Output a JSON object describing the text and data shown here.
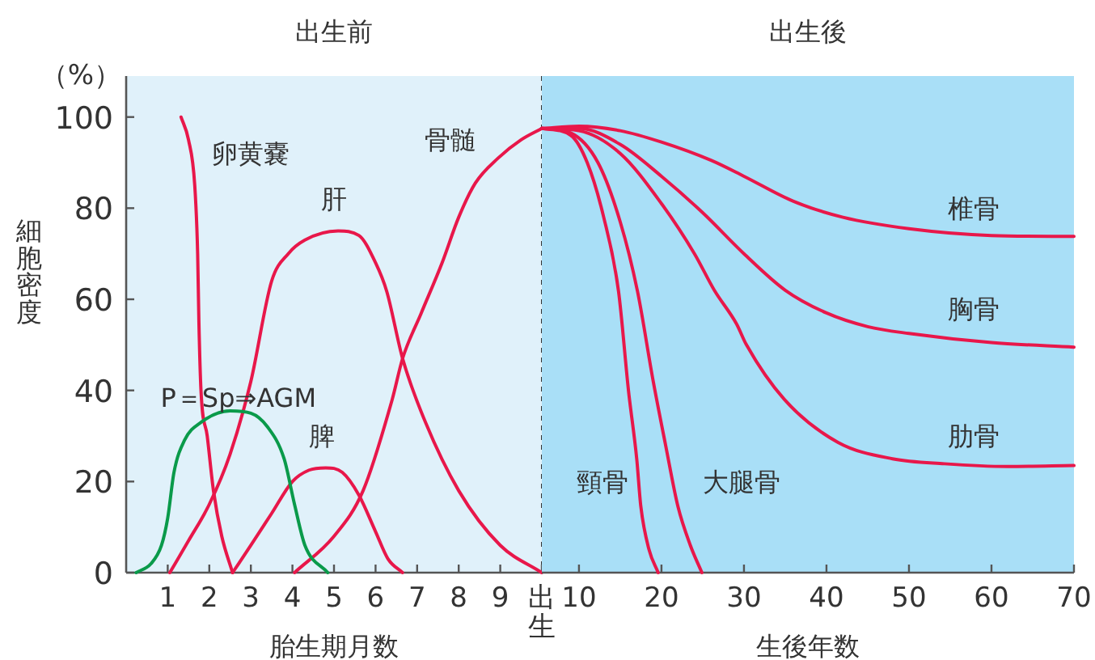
{
  "chart_data": [
    {
      "type": "line",
      "title": "出生前",
      "xlabel": "胎生期月数",
      "ylabel": "細胞密度",
      "annotations": [
        "（%）"
      ],
      "xlim": [
        0,
        10
      ],
      "xticks": [
        1,
        2,
        3,
        4,
        5,
        6,
        7,
        8,
        9,
        {
          "value": 10,
          "label": "出生"
        }
      ],
      "ylim": [
        0,
        109
      ],
      "yticks": [
        0,
        20,
        40,
        60,
        80,
        100
      ],
      "grid": false,
      "marker": "none",
      "line_style": "solid",
      "series": [
        {
          "name": "卵黄嚢",
          "color": "#e8174a",
          "x": [
            1.32,
            1.5,
            1.65,
            1.72,
            1.75,
            1.8,
            1.95,
            2.1,
            2.3,
            2.56
          ],
          "values": [
            100,
            95,
            85,
            70,
            55,
            40,
            30,
            18,
            8,
            0
          ]
        },
        {
          "name": "肝",
          "color": "#e8174a",
          "x": [
            1.05,
            1.5,
            2.0,
            2.5,
            3.0,
            3.5,
            3.9,
            4.3,
            5.1,
            5.6,
            6.0,
            6.27,
            6.65,
            7.2,
            8.0,
            9.0,
            10.0
          ],
          "values": [
            0,
            7,
            15,
            26,
            42,
            64,
            70,
            73,
            75,
            74,
            68,
            61.7,
            47,
            33,
            18,
            6,
            0
          ]
        },
        {
          "name": "骨髄",
          "color": "#e8174a",
          "x": [
            4.05,
            5.0,
            5.7,
            6.4,
            6.65,
            7.1,
            7.6,
            8.0,
            8.4,
            8.95,
            9.5,
            10.0
          ],
          "values": [
            0,
            8,
            18,
            38,
            47,
            57,
            68,
            78,
            85.5,
            91,
            95,
            97.5
          ]
        },
        {
          "name": "脾",
          "color": "#e8174a",
          "x": [
            2.56,
            3.0,
            3.5,
            4.0,
            4.4,
            4.8,
            5.2,
            5.6,
            6.0,
            6.3,
            6.65
          ],
          "values": [
            0,
            6,
            13,
            20,
            22.5,
            23,
            22,
            17,
            9,
            3,
            0
          ]
        },
        {
          "name": "P＝Sp⇒AGM",
          "color": "#0a9a4a",
          "x": [
            0.24,
            0.6,
            0.85,
            1.0,
            1.15,
            1.4,
            1.8,
            2.5,
            3.0,
            3.4,
            3.8,
            4.05,
            4.3,
            4.85
          ],
          "values": [
            0,
            2,
            6,
            12,
            22,
            29,
            33,
            35.5,
            35,
            32,
            25,
            15,
            6,
            0
          ]
        }
      ]
    },
    {
      "type": "line",
      "title": "出生後",
      "xlabel": "生後年数",
      "xlim": [
        5.5,
        70
      ],
      "xticks": [
        10,
        20,
        30,
        40,
        50,
        60,
        70
      ],
      "ylim": [
        0,
        109
      ],
      "tick_labels": "x",
      "grid": false,
      "marker": "none",
      "line_style": "solid",
      "series": [
        {
          "name": "椎骨",
          "color": "#e8174a",
          "x": [
            5.5,
            10,
            15,
            20,
            26,
            30,
            36,
            42,
            50,
            60,
            70
          ],
          "values": [
            97.5,
            98,
            97,
            94.5,
            90.5,
            87,
            81.5,
            78,
            75.5,
            74,
            73.8
          ]
        },
        {
          "name": "胸骨",
          "color": "#e8174a",
          "x": [
            5.5,
            10,
            15,
            20,
            25,
            30,
            35,
            40,
            45,
            50,
            60,
            70
          ],
          "values": [
            97.5,
            97.5,
            94,
            87,
            79,
            70,
            62,
            57,
            54,
            52.5,
            50.5,
            49.5
          ]
        },
        {
          "name": "肋骨",
          "color": "#e8174a",
          "x": [
            5.5,
            10,
            15,
            20,
            24,
            26.4,
            29.1,
            30.3,
            34.9,
            41.4,
            48,
            54.3,
            62,
            70
          ],
          "values": [
            97.5,
            97,
            92,
            81,
            70,
            62,
            54.6,
            50,
            38,
            28.6,
            25,
            23.9,
            23.3,
            23.5
          ]
        },
        {
          "name": "頸骨",
          "color": "#e8174a",
          "x": [
            5.5,
            9,
            11,
            13,
            14.8,
            16,
            17,
            17.5,
            18.5,
            19.6
          ],
          "values": [
            97.5,
            96,
            90,
            78,
            61.7,
            40,
            25,
            14.5,
            5,
            0
          ]
        },
        {
          "name": "大腿骨",
          "color": "#e8174a",
          "x": [
            5.5,
            9,
            12.3,
            15,
            17.1,
            19,
            20.5,
            22,
            23.5,
            24.9
          ],
          "values": [
            97.5,
            96.5,
            90,
            77,
            61.7,
            42,
            28,
            14.5,
            6,
            0
          ]
        }
      ]
    }
  ]
}
